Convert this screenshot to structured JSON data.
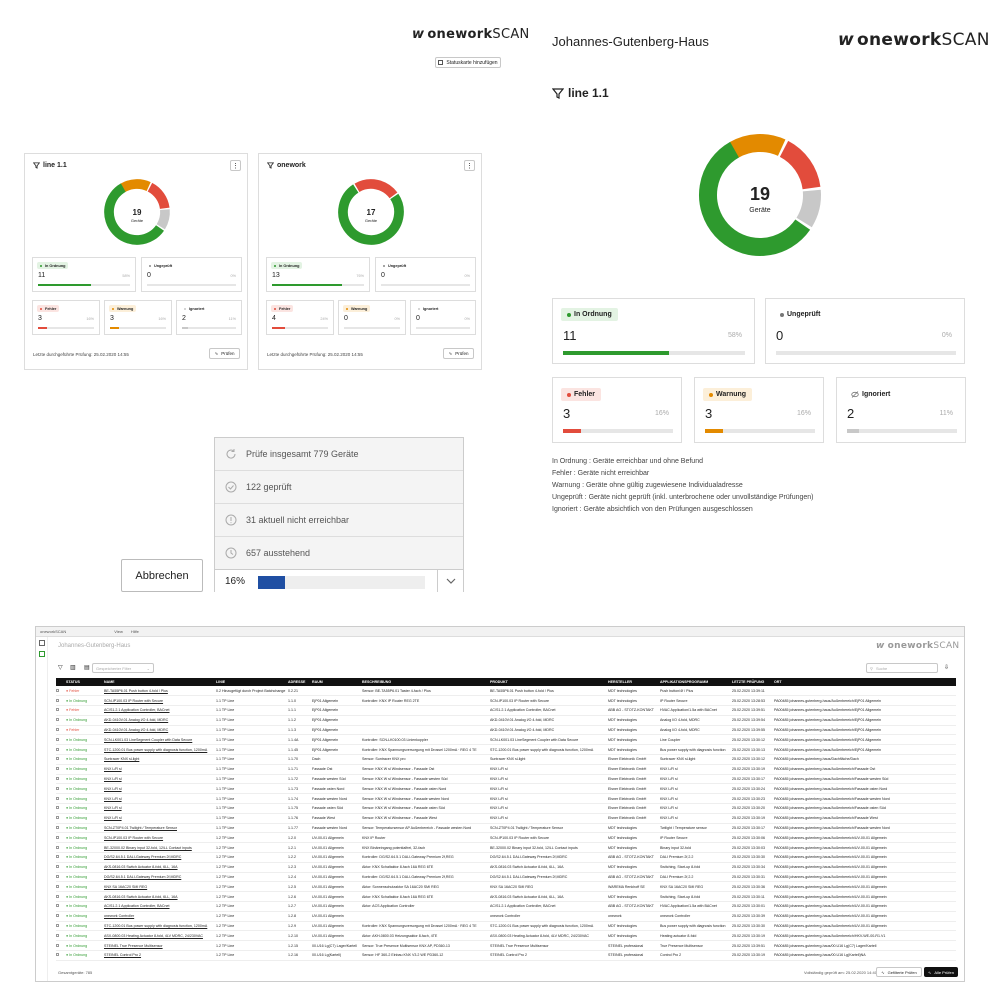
{
  "brand_text": "onework",
  "brand_scan": "SCAN",
  "top_left": {
    "add_card_label": "Statuskarte hinzufügen",
    "cards": [
      {
        "title": "line 1.1",
        "total": "19",
        "devices_label": "Geräte",
        "ok_label": "In Ordnung",
        "ok_count": "11",
        "ok_pct": "58%",
        "unchecked_label": "Ungeprüft",
        "unchecked_count": "0",
        "unchecked_pct": "0%",
        "error_label": "Fehler",
        "error_count": "3",
        "error_pct": "16%",
        "warning_label": "Warnung",
        "warning_count": "3",
        "warning_pct": "16%",
        "ignored_label": "Ignoriert",
        "ignored_count": "2",
        "ignored_pct": "11%",
        "last_check": "Letzte durchgeführte Prüfung: 25.02.2020 14:55",
        "check_label": "Prüfen",
        "shares": {
          "ok": 0.58,
          "error": 0.16,
          "warning": 0.16,
          "ignored": 0.11,
          "unchecked": 0
        }
      },
      {
        "title": "onework",
        "total": "17",
        "devices_label": "Geräte",
        "ok_label": "In Ordnung",
        "ok_count": "13",
        "ok_pct": "76%",
        "unchecked_label": "Ungeprüft",
        "unchecked_count": "0",
        "unchecked_pct": "0%",
        "error_label": "Fehler",
        "error_count": "4",
        "error_pct": "24%",
        "warning_label": "Warnung",
        "warning_count": "0",
        "warning_pct": "0%",
        "ignored_label": "Ignoriert",
        "ignored_count": "0",
        "ignored_pct": "0%",
        "last_check": "Letzte durchgeführte Prüfung: 25.02.2020 14:55",
        "check_label": "Prüfen",
        "shares": {
          "ok": 0.76,
          "error": 0.24,
          "warning": 0,
          "ignored": 0,
          "unchecked": 0
        }
      }
    ]
  },
  "detail": {
    "building": "Johannes-Gutenberg-Haus",
    "filter": "line 1.1",
    "total": "19",
    "devices_label": "Geräte",
    "ok_label": "In Ordnung",
    "ok_count": "11",
    "ok_pct": "58%",
    "unchecked_label": "Ungeprüft",
    "unchecked_count": "0",
    "unchecked_pct": "0%",
    "error_label": "Fehler",
    "error_count": "3",
    "error_pct": "16%",
    "warning_label": "Warnung",
    "warning_count": "3",
    "warning_pct": "16%",
    "ignored_label": "Ignoriert",
    "ignored_count": "2",
    "ignored_pct": "11%",
    "shares": {
      "ok": 0.58,
      "error": 0.16,
      "warning": 0.16,
      "ignored": 0.11,
      "unchecked": 0
    },
    "legend": [
      "In Ordnung :  Geräte erreichbar und ohne Befund",
      "Fehler :  Geräte nicht erreichbar",
      "Warnung :  Geräte ohne gültig zugewiesene Individualadresse",
      "Ungeprüft :  Geräte nicht geprüft (inkl. unterbrochene oder unvollständige Prüfungen)",
      "Ignoriert :  Geräte absichtlich von den Prüfungen ausgeschlossen"
    ]
  },
  "progress": {
    "cancel_label": "Abbrechen",
    "items": [
      "Prüfe insgesamt 779 Geräte",
      "122 geprüft",
      "31 aktuell nicht erreichbar",
      "657 ausstehend"
    ],
    "percent_label": "16%",
    "percent": 0.16
  },
  "app": {
    "tab_text": "oneworkSCAN",
    "menu_view": "View",
    "menu_help": "Hilfe",
    "project": "Johannes-Gutenberg-Haus",
    "dropdown_placeholder": "Gespeicherter Filter",
    "search_placeholder": "Suche",
    "columns": [
      "STATUS",
      "NAME",
      "LINIE",
      "ADRESSE",
      "RAUM",
      "BESCHREIBUNG",
      "PRODUKT",
      "HERSTELLER",
      "APPLIKATIONSPROGRAMM",
      "LETZTE PRÜFUNG",
      "ORT"
    ],
    "rows": [
      [
        "Fehler",
        "BE-TA55P6.01 Push button 4-fold / Plus",
        "0.2 Hinzugefügt durch Project Batchchange",
        "0.2.21",
        "",
        "Sensor: BE-TA55P6.01 Taster 4-fach / Plus",
        "BE-TA55P6.01 Push button 4-fold / Plus",
        "MDT technologies",
        "Push button/4f / Plus",
        "25.02.2020 13:39:11",
        ""
      ],
      [
        "In Ordnung",
        "SCN-IP100.03 IP Router with Secure",
        "1.1 TP Line",
        "1.1.0",
        "EjP01 Allgemein",
        "Kontroller: KNX IP Router REG 2TE",
        "SCN-IP100.03 IP Router with Secure",
        "MDT technologies",
        "IP Router Secure",
        "25.02.2020 13:28:53",
        "PA00485 johannes-gutenberg-haus/Außenbereich/EjP01 Allgemein"
      ],
      [
        "Fehler",
        "AC/S1.2.1 Application Controller, BACnet",
        "1.1 TP Line",
        "1.1.1",
        "EjP01 Allgemein",
        "",
        "AC/S1.2.1 Application Controller, BACnet",
        "ABB AG - STOTZ-KONTAKT",
        "HVAC Application/1.5a with BACnet",
        "25.02.2020 13:39:51",
        "PA00485 johannes-gutenberg-haus/Außenbereich/EjP01 Allgemein"
      ],
      [
        "In Ordnung",
        "AKD-0410V.01 Analog I/O 4-fold, MDRC",
        "1.1 TP Line",
        "1.1.2",
        "EjP01 Allgemein",
        "",
        "AKD-0410V.01 Analog I/O 4-fold, MDRC",
        "MDT technologies",
        "Analog I/O 4-fold, MDRC",
        "25.02.2020 13:39:54",
        "PA00485 johannes-gutenberg-haus/Außenbereich/EjP01 Allgemein"
      ],
      [
        "Fehler",
        "AKD-0410V.01 Analog I/O 4-fold, MDRC",
        "1.1 TP Line",
        "1.1.3",
        "EjP01 Allgemein",
        "",
        "AKD-0410V.01 Analog I/O 4-fold, MDRC",
        "MDT technologies",
        "Analog I/O 4-fold, MDRC",
        "25.02.2020 13:39:55",
        "PA00485 johannes-gutenberg-haus/Außenbereich/EjP01 Allgemein"
      ],
      [
        "In Ordnung",
        "SCN-LK001.03 LineSegment Coupler with Data Secure",
        "1.1 TP Line",
        "1.1.4A",
        "EjP01 Allgemein",
        "Kontroller: SCN-LK0100.03 Linienkoppler",
        "SCN-LK001.03 LineSegment Coupler with Data Secure",
        "MDT technologies",
        "Line Coupler",
        "25.02.2020 13:30:12",
        "PA00485 johannes-gutenberg-haus/Außenbereich/EjP01 Allgemein"
      ],
      [
        "In Ordnung",
        "STC-1200.01 Bus power supply with diagnosis function, 1200mA",
        "1.1 TP Line",
        "1.1.45",
        "EjP01 Allgemein",
        "Kontroller: KNX Spannungsversorgung mit Drossel 1200mA · REG 4 TE",
        "STC-1200.01 Bus power supply with diagnosis function, 1200mA",
        "MDT technologies",
        "Bus power supply with diagnosis function",
        "25.02.2020 13:30:13",
        "PA00485 johannes-gutenberg-haus/Außenbereich/EjP01 Allgemein"
      ],
      [
        "In Ordnung",
        "Suntracer KNX sl-light",
        "1.1 TP Line",
        "1.1.70",
        "Dach",
        "Sensor: Suntracer KNX pro",
        "Suntracer KNX sl-light",
        "Elsner Elektronik GmbH",
        "Suntracer KNX sl-light",
        "25.02.2020 13:30:12",
        "PA00485 johannes-gutenberg-haus/Dachfläche/Dach"
      ],
      [
        "In Ordnung",
        "KNX L/R sl",
        "1.1 TP Line",
        "1.1.71",
        "Fassade Ost",
        "Sensor: KNX W sl Windsensor - Fassade Ost",
        "KNX L/R sl",
        "Elsner Elektronik GmbH",
        "KNX L/R sl",
        "25.02.2020 13:30:19",
        "PA00485 johannes-gutenberg-haus/Außenbereich/Fassade Ost"
      ],
      [
        "In Ordnung",
        "KNX L/R sl",
        "1.1 TP Line",
        "1.1.72",
        "Fassade westen Süd",
        "Sensor: KNX W sl Windsensor - Fassade westen Süd",
        "KNX L/R sl",
        "Elsner Elektronik GmbH",
        "KNX L/R sl",
        "25.02.2020 13:30:17",
        "PA00485 johannes-gutenberg-haus/Außenbereich/Fassade westen Süd"
      ],
      [
        "In Ordnung",
        "KNX L/R sl",
        "1.1 TP Line",
        "1.1.73",
        "Fassade osten Nord",
        "Sensor: KNX W sl Windsensor - Fassade osten Nord",
        "KNX L/R sl",
        "Elsner Elektronik GmbH",
        "KNX L/R sl",
        "25.02.2020 13:30:24",
        "PA00485 johannes-gutenberg-haus/Außenbereich/Fassade osten Nord"
      ],
      [
        "In Ordnung",
        "KNX L/R sl",
        "1.1 TP Line",
        "1.1.74",
        "Fassade westen Nord",
        "Sensor: KNX W sl Windsensor - Fassade westen Nord",
        "KNX L/R sl",
        "Elsner Elektronik GmbH",
        "KNX L/R sl",
        "25.02.2020 13:30:23",
        "PA00485 johannes-gutenberg-haus/Außenbereich/Fassade westen Nord"
      ],
      [
        "In Ordnung",
        "KNX L/R sl",
        "1.1 TP Line",
        "1.1.75",
        "Fassade osten Süd",
        "Sensor: KNX W sl Windsensor - Fassade osten Süd",
        "KNX L/R sl",
        "Elsner Elektronik GmbH",
        "KNX L/R sl",
        "25.02.2020 13:30:20",
        "PA00485 johannes-gutenberg-haus/Außenbereich/Fassade osten Süd"
      ],
      [
        "In Ordnung",
        "KNX L/R sl",
        "1.1 TP Line",
        "1.1.76",
        "Fassade West",
        "Sensor: KNX W sl Windsensor - Fassade West",
        "KNX L/R sl",
        "Elsner Elektronik GmbH",
        "KNX L/R sl",
        "25.02.2020 13:30:19",
        "PA00485 johannes-gutenberg-haus/Außenbereich/Fassade West"
      ],
      [
        "In Ordnung",
        "SCN-ZT0P4.01 Twilight / Temperature Sensor",
        "1.1 TP Line",
        "1.1.77",
        "Fassade westen Nord",
        "Sensor: Temperatursensor AP Außenbereich - Fassade westen Nord",
        "SCN-ZT0P4.01 Twilight / Temperature Sensor",
        "MDT technologies",
        "Twilight / Temperature sensor",
        "25.02.2020 13:30:17",
        "PA00485 johannes-gutenberg-haus/Außenbereich/Fassade westen Nord"
      ],
      [
        "In Ordnung",
        "SCN-IP100.03 IP Router with Secure",
        "1.2 TP Line",
        "1.2.0",
        "UV-00-01 Allgemein",
        "KNX IP Router",
        "SCN-IP100.03 IP Router with Secure",
        "MDT technologies",
        "IP Router Secure",
        "25.02.2020 13:30:06",
        "PA00485 johannes-gutenberg-haus/Außenbereich/UV-00-01 Allgemein"
      ],
      [
        "In Ordnung",
        "BE-32000.02 Binary input 32-fold, 12/LL Contact inputs",
        "1.2 TP Line",
        "1.2.1",
        "UV-00-01 Allgemein",
        "KNX Binäreingang potentialfrei, 32-fach",
        "BE-32000.02 Binary input 32-fold, 12/LL Contact inputs",
        "MDT technologies",
        "Binary input 32-fold",
        "25.02.2020 13:30:03",
        "PA00485 johannes-gutenberg-haus/Außenbereich/UV-00-01 Allgemein"
      ],
      [
        "In Ordnung",
        "DG/S2.64.5.1 DALI-Gateway Premium 2f,MDRC",
        "1.2 TP Line",
        "1.2.2",
        "UV-00-01 Allgemein",
        "Kontroller: DG/S2.64.5.1 DALI-Gateway Premium 2f,REG",
        "DG/S2.64.5.1 DALI-Gateway Premium 2f,MDRC",
        "ABB AG - STOTZ-KONTAKT",
        "DALI Premium 2f,2.2",
        "25.02.2020 13:30:30",
        "PA00485 johannes-gutenberg-haus/Außenbereich/UV-00-01 Allgemein"
      ],
      [
        "In Ordnung",
        "AKS-0816.03 Switch Actuator 8-fold, 6LL, 16A",
        "1.2 TP Line",
        "1.2.3",
        "UV-00-01 Allgemein",
        "Aktor: KNX Schaltaktor 8-fach 16A REG 6TE",
        "AKS-0816.03 Switch Actuator 8-fold, 6LL, 16A",
        "MDT technologies",
        "Switching, Start-up 8-fold",
        "25.02.2020 13:30:34",
        "PA00485 johannes-gutenberg-haus/Außenbereich/UV-00-01 Allgemein"
      ],
      [
        "In Ordnung",
        "DG/S2.64.5.1 DALI-Gateway Premium 2f,MDRC",
        "1.2 TP Line",
        "1.2.4",
        "UV-00-01 Allgemein",
        "Kontroller: DG/S2.64.5.1 DALI-Gateway Premium 2f,REG",
        "DG/S2.64.5.1 DALI-Gateway Premium 2f,MDRC",
        "ABB AG - STOTZ-KONTAKT",
        "DALI Premium 2f,2.2",
        "25.02.2020 13:30:31",
        "PA00485 johannes-gutenberg-haus/Außenbereich/UV-00-01 Allgemein"
      ],
      [
        "In Ordnung",
        "KNX SA 16AC20 SMI REG",
        "1.2 TP Line",
        "1.2.5",
        "UV-00-01 Allgemein",
        "Aktor: Sonnenschutzaktor SA 16AC20 SMI REG",
        "KNX SA 16AC20 SMI REG",
        "WAREMA Renkhoff SE",
        "KNX SA 16AC20 SMI REG",
        "25.02.2020 13:30:36",
        "PA00485 johannes-gutenberg-haus/Außenbereich/UV-00-01 Allgemein"
      ],
      [
        "In Ordnung",
        "AKS-0816.03 Switch Actuator 8-fold, 6LL, 16A",
        "1.2 TP Line",
        "1.2.6",
        "UV-00-01 Allgemein",
        "Aktor: KNX Schaltaktor 8-fach 16A REG 6TE",
        "AKS-0816.03 Switch Actuator 8-fold, 6LL, 16A",
        "MDT technologies",
        "Switching, Start-up 8-fold",
        "25.02.2020 13:30:11",
        "PA00485 johannes-gutenberg-haus/Außenbereich/UV-00-01 Allgemein"
      ],
      [
        "In Ordnung",
        "AC/S1.2.1 Application Controller, BACnet",
        "1.2 TP Line",
        "1.2.7",
        "UV-00-01 Allgemein",
        "Aktor: ACS Application Controller",
        "AC/S1.2.1 Application Controller, BACnet",
        "ABB AG - STOTZ-KONTAKT",
        "HVAC Application/1.5a with BACnet",
        "25.02.2020 13:30:01",
        "PA00485 johannes-gutenberg-haus/Außenbereich/UV-00-01 Allgemein"
      ],
      [
        "In Ordnung",
        "onework Controller",
        "1.2 TP Line",
        "1.2.8",
        "UV-00-01 Allgemein",
        "",
        "onework Controller",
        "onework",
        "onework Controller",
        "25.02.2020 13:30:39",
        "PA00485 johannes-gutenberg-haus/Außenbereich/UV-00-01 Allgemein"
      ],
      [
        "In Ordnung",
        "STC-1200.01 Bus power supply with diagnosis function, 1200mA",
        "1.2 TP Line",
        "1.2.9",
        "UV-00-01 Allgemein",
        "Kontroller: KNX Spannungsversorgung mit Drossel 1200mA · REG 4 TE",
        "STC-1200.01 Bus power supply with diagnosis function, 1200mA",
        "MDT technologies",
        "Bus power supply with diagnosis function",
        "25.02.2020 13:30:30",
        "PA00485 johannes-gutenberg-haus/Außenbereich/UV-00-01 Allgemein"
      ],
      [
        "In Ordnung",
        "ASX-0800.03 Heating Actuator 8-fold, 4LV MDRC, 24/230VAC",
        "1.2 TP Line",
        "1.2.10",
        "UV-00-01 Allgemein",
        "Aktor: AKH-0800.03 Heizungsaktor 8-fach, 4TE",
        "ASX-0800.03 Heating Actuator 8-fold, 4LV MDRC, 24/230VAC",
        "MDT technologies",
        "Heating actuator 8-fold",
        "25.02.2020 13:30:19",
        "PA00485 johannes-gutenberg-haus/Außenbereich/HKV-WE-00-R1.V1"
      ],
      [
        "In Ordnung",
        "STEINEL True Presence Multisensor",
        "1.2 TP Line",
        "1.2.15",
        "00.U16 Lg(C7) Lager/Kartell",
        "Sensor: True Presence Multisensor KNX AP, PD360-13",
        "STEINEL True Presence Multisensor",
        "STEINEL professional",
        "True Presence Multisensor",
        "25.02.2020 13:39:51",
        "PA00485 johannes-gutenberg-haus/00.U16 Lg(C7) Lager/Kartell"
      ],
      [
        "In Ordnung",
        "STEINEL Control Pro 2",
        "1.2 TP Line",
        "1.2.16",
        "00.U16 Lg(Kartell)",
        "Sensor: HF 360-2 Einbau KNX V3.2 WE PD360-12",
        "STEINEL Control Pro 2",
        "STEINEL professional",
        "Control Pro 2",
        "25.02.2020 13:30:19",
        "PA00485 johannes-gutenberg-haus/00.U16 Lg(Kartell)NA"
      ]
    ],
    "total_label": "Gesamtgeräte: 785",
    "last_check_label": "Vollständig geprüft am: 25.02.2020 14:40",
    "check_filtered_label": "Gefilterte Prüfen",
    "check_all_label": "Alle Prüfen"
  },
  "colors": {
    "ok": "#2e9a2e",
    "error": "#e24c3c",
    "warning": "#e38a00",
    "ignored": "#c8c8c8",
    "unchecked": "#888888",
    "progress": "#1f4fa3"
  }
}
